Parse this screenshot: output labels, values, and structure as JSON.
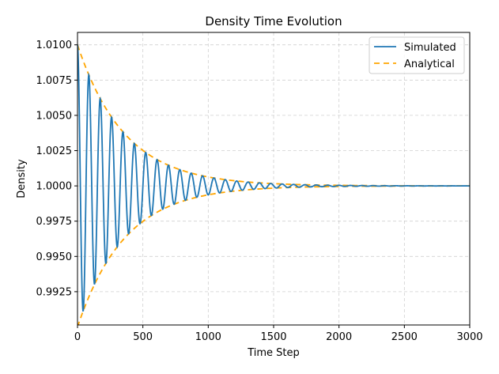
{
  "chart_data": {
    "type": "line",
    "title": "Density Time Evolution",
    "xlabel": "Time Step",
    "ylabel": "Density",
    "xlim": [
      0,
      3000
    ],
    "ylim": [
      0.99014,
      1.01088
    ],
    "x_ticks": [
      0,
      500,
      1000,
      1500,
      2000,
      2500,
      3000
    ],
    "x_tick_labels": [
      "0",
      "500",
      "1000",
      "1500",
      "2000",
      "2500",
      "3000"
    ],
    "y_ticks": [
      0.9925,
      0.995,
      0.9975,
      1.0,
      1.0025,
      1.005,
      1.0075,
      1.01
    ],
    "y_tick_labels": [
      "0.9925",
      "0.9950",
      "0.9975",
      "1.0000",
      "1.0025",
      "1.0050",
      "1.0075",
      "1.0100"
    ],
    "grid": true,
    "legend_position": "top-right",
    "series": [
      {
        "name": "Simulated",
        "style": "solid",
        "color": "#1f77b4",
        "equilibrium": 1.0,
        "initial_amplitude": 0.01,
        "decay_rate": 0.00276,
        "period": 87,
        "x_start": 0,
        "x_end": 3000
      },
      {
        "name": "Analytical",
        "style": "dashed",
        "color": "#ffa500",
        "envelope": "1 ± 0.01·exp(-0.00276·t)",
        "x_start": 0,
        "x_end": 3000
      }
    ]
  }
}
